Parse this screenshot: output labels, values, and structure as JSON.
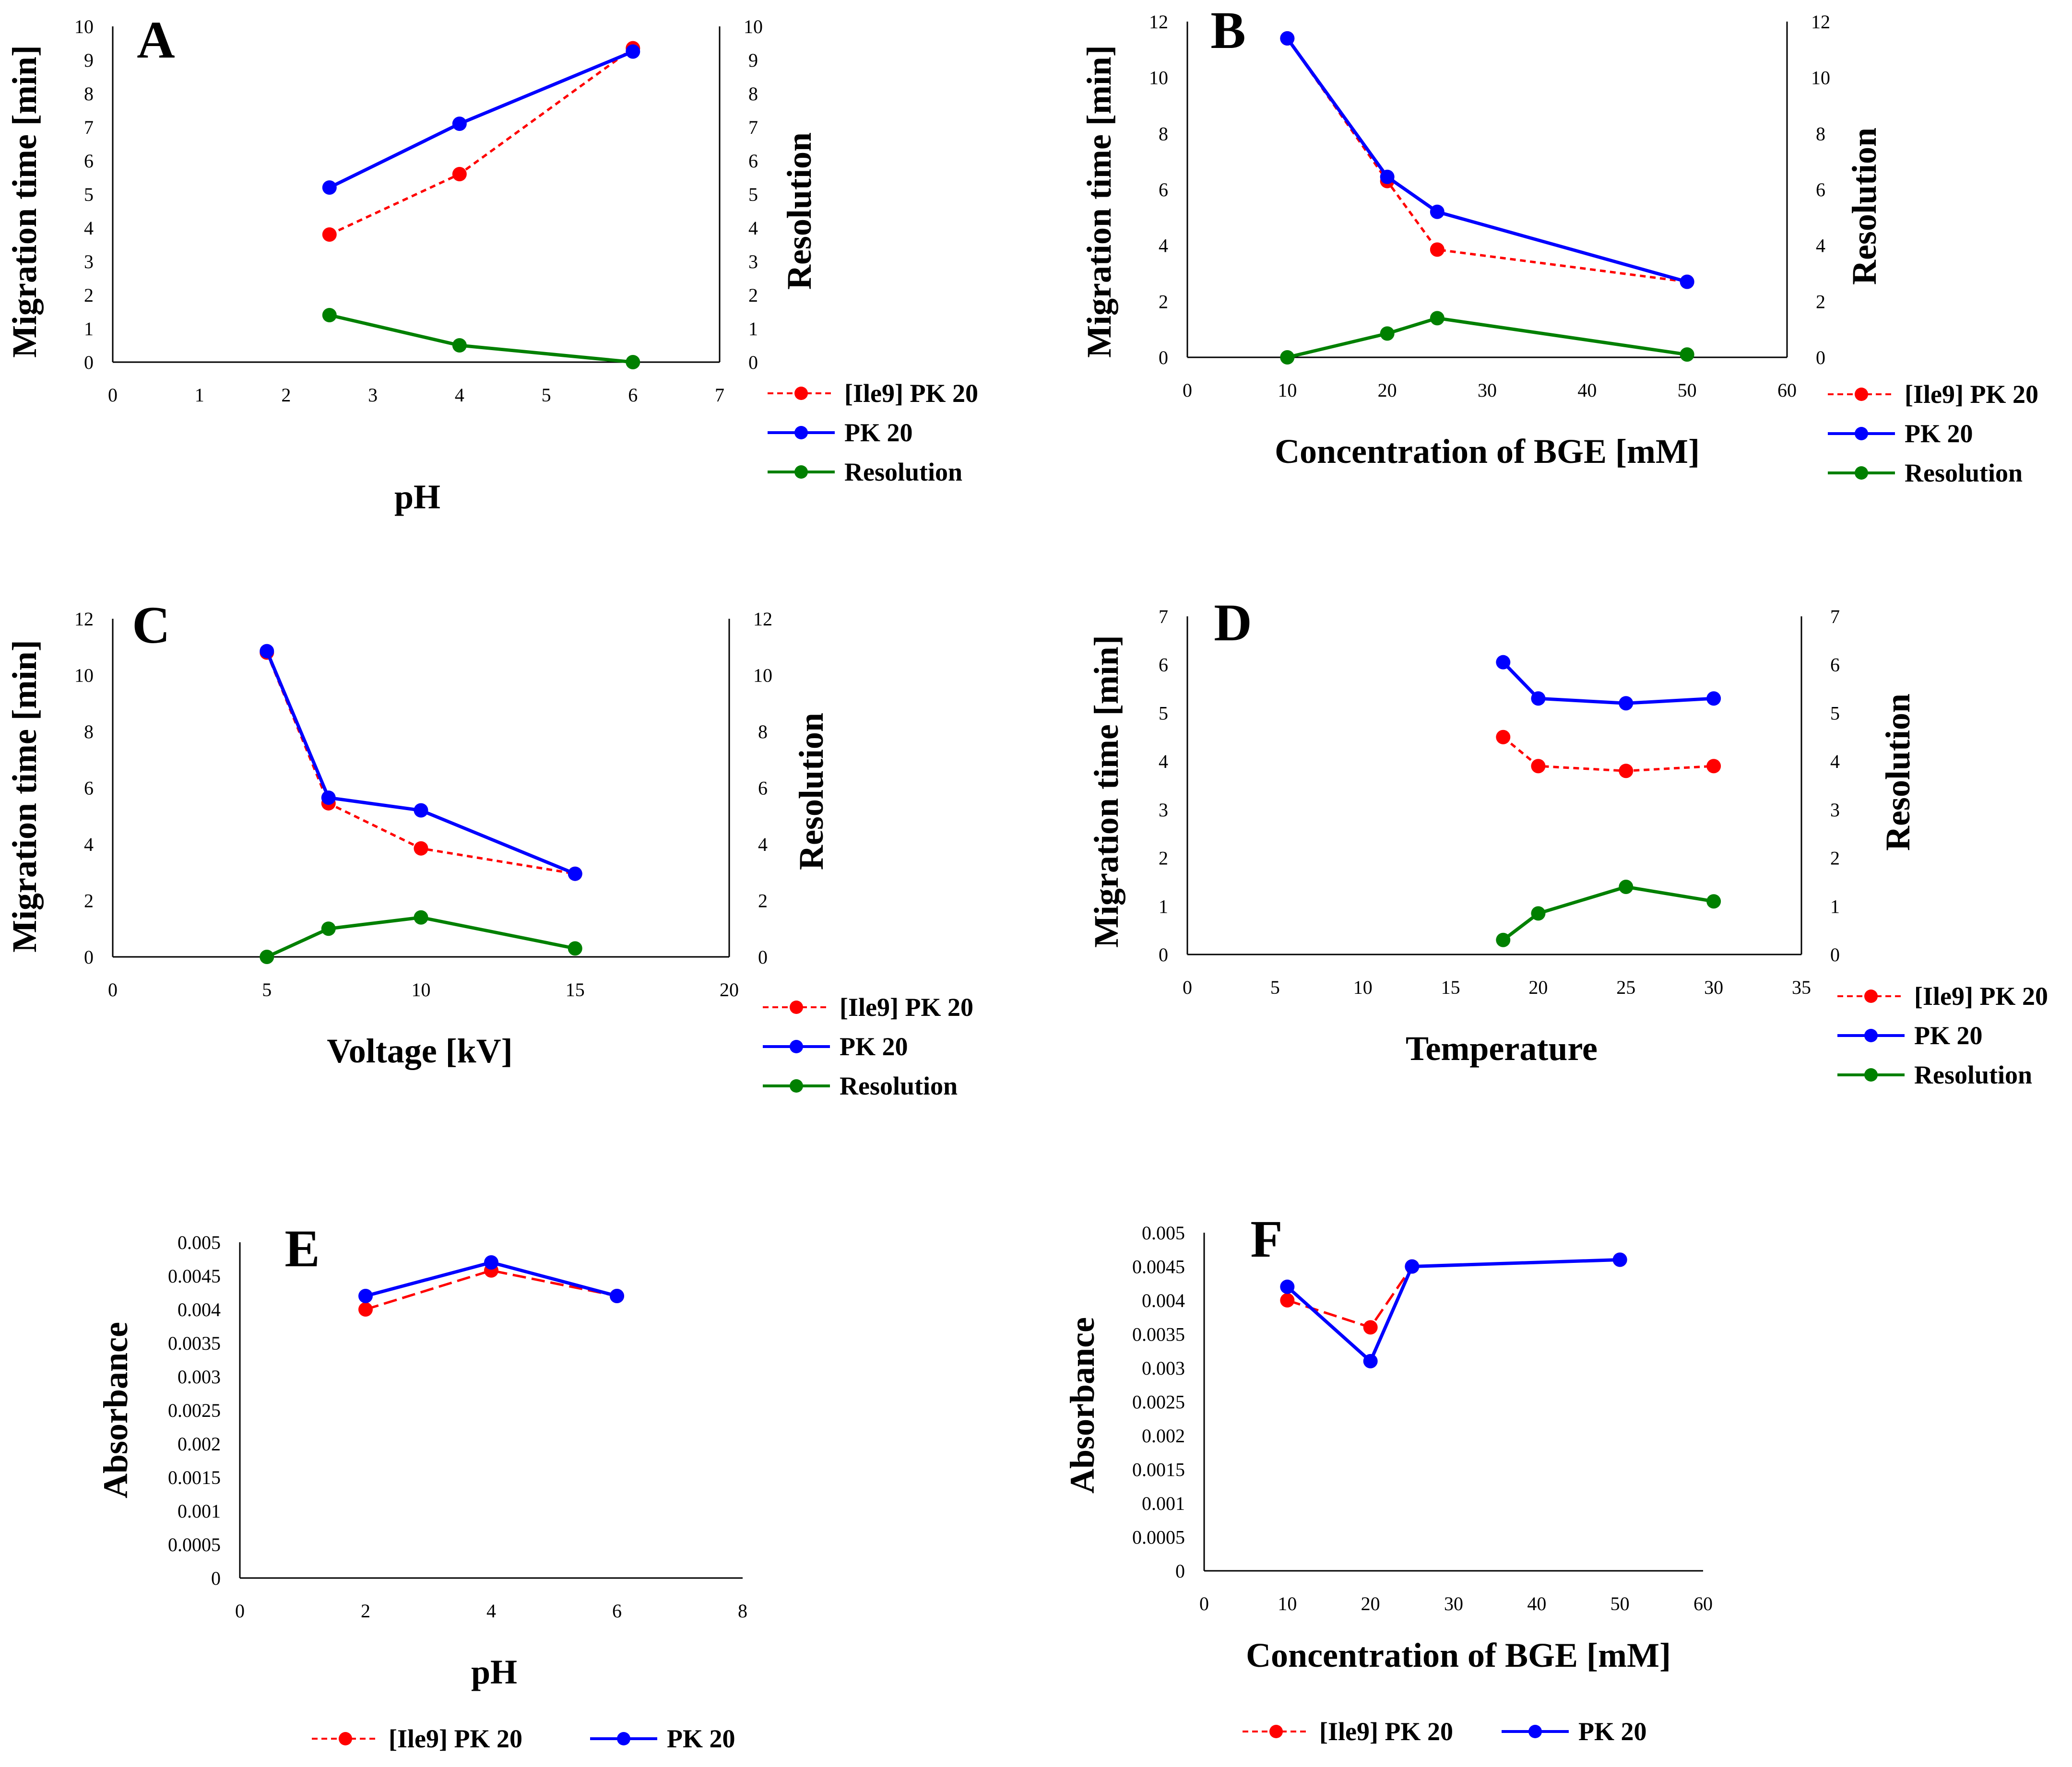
{
  "colors": {
    "ile9": "#ff0000",
    "pk20": "#0000ff",
    "resolution": "#008000"
  },
  "chart_data": [
    {
      "type": "line",
      "panel": "A",
      "xlabel": "pH",
      "ylabel": "Migration time [min]",
      "y2label": "Resolution",
      "xlim": [
        0,
        7
      ],
      "ylim": [
        0,
        10
      ],
      "y2lim": [
        0,
        10
      ],
      "xticks": [
        0,
        1,
        2,
        3,
        4,
        5,
        6,
        7
      ],
      "yticks": [
        0,
        1,
        2,
        3,
        4,
        5,
        6,
        7,
        8,
        9,
        10
      ],
      "y2ticks": [
        0,
        1,
        2,
        3,
        4,
        5,
        6,
        7,
        8,
        9,
        10
      ],
      "legend_position": "right-below",
      "series": [
        {
          "name": "[Ile9] PK 20",
          "key": "ile9",
          "dashed": true,
          "x": [
            2.5,
            4,
            6
          ],
          "y": [
            3.8,
            5.6,
            9.35
          ]
        },
        {
          "name": "PK 20",
          "key": "pk20",
          "dashed": false,
          "x": [
            2.5,
            4,
            6
          ],
          "y": [
            5.2,
            7.1,
            9.25
          ]
        },
        {
          "name": "Resolution",
          "key": "resolution",
          "dashed": false,
          "x": [
            2.5,
            4,
            6
          ],
          "y": [
            1.4,
            0.5,
            0.0
          ]
        }
      ]
    },
    {
      "type": "line",
      "panel": "B",
      "xlabel": "Concentration of BGE [mM]",
      "ylabel": "Migration time [min]",
      "y2label": "Resolution",
      "xlim": [
        0,
        60
      ],
      "ylim": [
        0,
        12
      ],
      "y2lim": [
        0,
        12
      ],
      "xticks": [
        0,
        10,
        20,
        30,
        40,
        50,
        60
      ],
      "yticks": [
        0,
        2,
        4,
        6,
        8,
        10,
        12
      ],
      "y2ticks": [
        0,
        2,
        4,
        6,
        8,
        10,
        12
      ],
      "legend_position": "right-below",
      "series": [
        {
          "name": "[Ile9] PK 20",
          "key": "ile9",
          "dashed": true,
          "x": [
            10,
            20,
            25,
            50
          ],
          "y": [
            11.4,
            6.3,
            3.85,
            2.7
          ]
        },
        {
          "name": "PK 20",
          "key": "pk20",
          "dashed": false,
          "x": [
            10,
            20,
            25,
            50
          ],
          "y": [
            11.4,
            6.45,
            5.2,
            2.7
          ]
        },
        {
          "name": "Resolution",
          "key": "resolution",
          "dashed": false,
          "x": [
            10,
            20,
            25,
            50
          ],
          "y": [
            0.0,
            0.85,
            1.4,
            0.1
          ]
        }
      ]
    },
    {
      "type": "line",
      "panel": "C",
      "xlabel": "Voltage [kV]",
      "ylabel": "Migration time [min]",
      "y2label": "Resolution",
      "xlim": [
        0,
        20
      ],
      "ylim": [
        0,
        12
      ],
      "y2lim": [
        0,
        12
      ],
      "xticks": [
        0,
        5,
        10,
        15,
        20
      ],
      "yticks": [
        0,
        2,
        4,
        6,
        8,
        10,
        12
      ],
      "y2ticks": [
        0,
        2,
        4,
        6,
        8,
        10,
        12
      ],
      "legend_position": "right-below",
      "series": [
        {
          "name": "[Ile9] PK 20",
          "key": "ile9",
          "dashed": true,
          "x": [
            5,
            7,
            10,
            15
          ],
          "y": [
            10.8,
            5.45,
            3.85,
            2.95
          ]
        },
        {
          "name": "PK 20",
          "key": "pk20",
          "dashed": false,
          "x": [
            5,
            7,
            10,
            15
          ],
          "y": [
            10.85,
            5.65,
            5.2,
            2.95
          ]
        },
        {
          "name": "Resolution",
          "key": "resolution",
          "dashed": false,
          "x": [
            5,
            7,
            10,
            15
          ],
          "y": [
            0.0,
            1.0,
            1.4,
            0.3
          ]
        }
      ]
    },
    {
      "type": "line",
      "panel": "D",
      "xlabel": "Temperature",
      "ylabel": "Migration time [min]",
      "y2label": "Resolution",
      "xlim": [
        0,
        35
      ],
      "ylim": [
        0,
        7
      ],
      "y2lim": [
        0,
        7
      ],
      "xticks": [
        0,
        5,
        10,
        15,
        20,
        25,
        30,
        35
      ],
      "yticks": [
        0,
        1,
        2,
        3,
        4,
        5,
        6,
        7
      ],
      "y2ticks": [
        0,
        1,
        2,
        3,
        4,
        5,
        6,
        7
      ],
      "legend_position": "right-below",
      "series": [
        {
          "name": "[Ile9] PK 20",
          "key": "ile9",
          "dashed": true,
          "x": [
            18,
            20,
            25,
            30
          ],
          "y": [
            4.5,
            3.9,
            3.8,
            3.9
          ]
        },
        {
          "name": "PK 20",
          "key": "pk20",
          "dashed": false,
          "x": [
            18,
            20,
            25,
            30
          ],
          "y": [
            6.05,
            5.3,
            5.2,
            5.3
          ]
        },
        {
          "name": "Resolution",
          "key": "resolution",
          "dashed": false,
          "x": [
            18,
            20,
            25,
            30
          ],
          "y": [
            0.3,
            0.85,
            1.4,
            1.1
          ]
        }
      ]
    },
    {
      "type": "line",
      "panel": "E",
      "xlabel": "pH",
      "ylabel": "Absorbance",
      "xlim": [
        0,
        8
      ],
      "ylim": [
        0,
        0.005
      ],
      "xticks": [
        0,
        2,
        4,
        6,
        8
      ],
      "yticks": [
        0,
        0.0005,
        0.001,
        0.0015,
        0.002,
        0.0025,
        0.003,
        0.0035,
        0.004,
        0.0045,
        0.005
      ],
      "ytick_labels": [
        "0",
        "0.0005",
        "0.001",
        "0.0015",
        "0.002",
        "0.0025",
        "0.003",
        "0.0035",
        "0.004",
        "0.0045",
        "0.005"
      ],
      "legend_position": "bottom",
      "series": [
        {
          "name": "[Ile9] PK 20",
          "key": "ile9",
          "dashed": true,
          "x": [
            2,
            4,
            6
          ],
          "y": [
            0.004,
            0.00458,
            0.0042
          ]
        },
        {
          "name": "PK 20",
          "key": "pk20",
          "dashed": false,
          "x": [
            2,
            4,
            6
          ],
          "y": [
            0.0042,
            0.0047,
            0.0042
          ]
        }
      ]
    },
    {
      "type": "line",
      "panel": "F",
      "xlabel": "Concentration of BGE [mM]",
      "ylabel": "Absorbance",
      "xlim": [
        0,
        60
      ],
      "ylim": [
        0,
        0.005
      ],
      "xticks": [
        0,
        10,
        20,
        30,
        40,
        50,
        60
      ],
      "yticks": [
        0,
        0.0005,
        0.001,
        0.0015,
        0.002,
        0.0025,
        0.003,
        0.0035,
        0.004,
        0.0045,
        0.005
      ],
      "ytick_labels": [
        "0",
        "0.0005",
        "0.001",
        "0.0015",
        "0.002",
        "0.0025",
        "0.003",
        "0.0035",
        "0.004",
        "0.0045",
        "0.005"
      ],
      "legend_position": "bottom",
      "series": [
        {
          "name": "[Ile9] PK 20",
          "key": "ile9",
          "dashed": true,
          "x": [
            10,
            20,
            25,
            50
          ],
          "y": [
            0.004,
            0.0036,
            0.0045,
            0.0046
          ]
        },
        {
          "name": "PK 20",
          "key": "pk20",
          "dashed": false,
          "x": [
            10,
            20,
            25,
            50
          ],
          "y": [
            0.0042,
            0.0031,
            0.0045,
            0.0046
          ]
        }
      ]
    }
  ]
}
